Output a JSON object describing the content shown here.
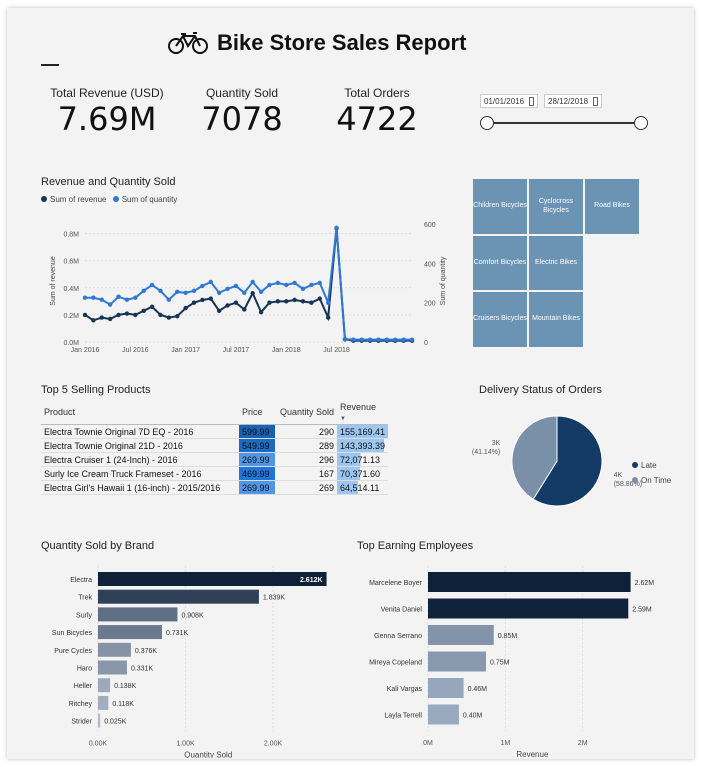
{
  "report": {
    "title": "Bike Store Sales Report",
    "icon": "bicycle-icon"
  },
  "kpis": [
    {
      "label": "Total Revenue (USD)",
      "value": "7.69M"
    },
    {
      "label": "Quantity Sold",
      "value": "7078"
    },
    {
      "label": "Total Orders",
      "value": "4722"
    }
  ],
  "date_filter": {
    "start": "01/01/2016",
    "end": "28/12/2018"
  },
  "colors": {
    "dark_navy": "#0f2a4a",
    "mid_blue": "#2e79d6",
    "treemap": "#6b93b4",
    "late": "#143a66",
    "on_time": "#7a8fa8"
  },
  "chart_data": [
    {
      "type": "line",
      "title": "Revenue and Quantity Sold",
      "series": [
        {
          "name": "Sum of revenue",
          "color": "#163456",
          "values": [
            0.2,
            0.16,
            0.18,
            0.17,
            0.2,
            0.21,
            0.2,
            0.23,
            0.26,
            0.2,
            0.18,
            0.19,
            0.25,
            0.29,
            0.31,
            0.32,
            0.23,
            0.27,
            0.29,
            0.24,
            0.36,
            0.22,
            0.29,
            0.3,
            0.3,
            0.31,
            0.3,
            0.29,
            0.32,
            0.18,
            0.84,
            0.02,
            0.01,
            0.01,
            0.01,
            0.01,
            0.01,
            0.01,
            0.01,
            0.01
          ]
        },
        {
          "name": "Sum of quantity",
          "color": "#2e79d6",
          "values": [
            225,
            225,
            215,
            190,
            230,
            215,
            225,
            260,
            290,
            260,
            215,
            255,
            250,
            260,
            285,
            305,
            250,
            270,
            285,
            250,
            305,
            255,
            290,
            300,
            290,
            300,
            270,
            290,
            300,
            200,
            580,
            15,
            12,
            12,
            12,
            12,
            12,
            12,
            12,
            12
          ]
        }
      ],
      "x_ticks": [
        "Jan 2016",
        "Jul 2016",
        "Jan 2017",
        "Jul 2017",
        "Jan 2018",
        "Jul 2018"
      ],
      "y_left": {
        "label": "Sum of revenue",
        "ticks": [
          "0.0M",
          "0.2M",
          "0.4M",
          "0.6M",
          "0.8M"
        ],
        "lim": [
          0,
          0.9
        ]
      },
      "y_right": {
        "label": "Sum of quantity",
        "ticks": [
          "0",
          "200",
          "400",
          "600"
        ],
        "lim": [
          0,
          620
        ]
      }
    },
    {
      "type": "treemap",
      "categories": [
        "Children Bicycles",
        "Cyclocross Bicycles",
        "Road Bikes",
        "Comfort Bicycles",
        "Electric Bikes",
        "Cruisers Bicycles",
        "Mountain Bikes"
      ]
    },
    {
      "type": "table",
      "title": "Top 5 Selling Products",
      "columns": [
        "Product",
        "Price",
        "Quantity Sold",
        "Revenue"
      ],
      "rows": [
        {
          "product": "Electra Townie Original 7D EQ - 2016",
          "price": "599.99",
          "qty": "290",
          "revenue": "155,169.41",
          "price_value": 599.99,
          "revenue_value": 155169.41
        },
        {
          "product": "Electra Townie Original 21D - 2016",
          "price": "549.99",
          "qty": "289",
          "revenue": "143,393.39",
          "price_value": 549.99,
          "revenue_value": 143393.39
        },
        {
          "product": "Electra Cruiser 1 (24-Inch) - 2016",
          "price": "269.99",
          "qty": "296",
          "revenue": "72,071.13",
          "price_value": 269.99,
          "revenue_value": 72071.13
        },
        {
          "product": "Surly Ice Cream Truck Frameset - 2016",
          "price": "469.99",
          "qty": "167",
          "revenue": "70,371.60",
          "price_value": 469.99,
          "revenue_value": 70371.6
        },
        {
          "product": "Electra Girl's Hawaii 1 (16-inch) - 2015/2016",
          "price": "269.99",
          "qty": "269",
          "revenue": "64,514.11",
          "price_value": 269.99,
          "revenue_value": 64514.11
        }
      ]
    },
    {
      "type": "pie",
      "title": "Delivery Status of Orders",
      "slices": [
        {
          "name": "Late",
          "value": 58.86,
          "label": "4K",
          "pct": "(58.86%)",
          "color": "#143a66"
        },
        {
          "name": "On Time",
          "value": 41.14,
          "label": "3K",
          "pct": "(41.14%)",
          "color": "#7a8fa8"
        }
      ]
    },
    {
      "type": "bar",
      "title": "Quantity Sold by Brand",
      "categories": [
        "Electra",
        "Trek",
        "Surly",
        "Sun Bicycles",
        "Pure Cycles",
        "Haro",
        "Heller",
        "Ritchey",
        "Strider"
      ],
      "values": [
        2612,
        1839,
        908,
        731,
        376,
        331,
        138,
        118,
        25
      ],
      "labels": [
        "2.612K",
        "1.839K",
        "0.908K",
        "0.731K",
        "0.376K",
        "0.331K",
        "0.138K",
        "0.118K",
        "0.025K"
      ],
      "xlabel": "Quantity Sold",
      "x_ticks": [
        "0.00K",
        "1.00K",
        "2.00K"
      ],
      "xlim": [
        0,
        2800
      ]
    },
    {
      "type": "bar",
      "title": "Top Earning Employees",
      "categories": [
        "Marcelene Boyer",
        "Venita Daniel",
        "Genna Serrano",
        "Mireya Copeland",
        "Kali Vargas",
        "Layla Terrell"
      ],
      "values": [
        2.62,
        2.59,
        0.85,
        0.75,
        0.46,
        0.4
      ],
      "labels": [
        "2.62M",
        "2.59M",
        "0.85M",
        "0.75M",
        "0.46M",
        "0.40M"
      ],
      "xlabel": "Revenue",
      "x_ticks": [
        "0M",
        "1M",
        "2M"
      ],
      "xlim": [
        0,
        3.0
      ]
    }
  ]
}
